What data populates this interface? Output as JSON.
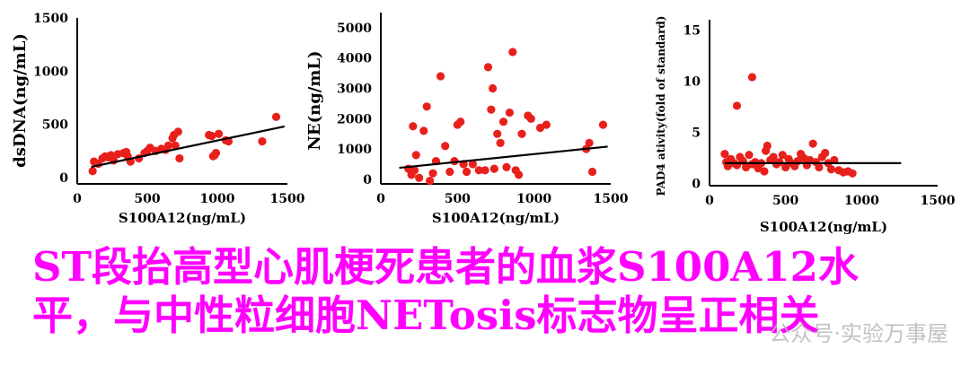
{
  "chart_data": [
    {
      "type": "scatter",
      "xlabel": "S100A12(ng/mL)",
      "ylabel": "dsDNA(ng/mL)",
      "xlim": [
        0,
        1500
      ],
      "ylim": [
        -60,
        1500
      ],
      "xticks": [
        0,
        500,
        1000,
        1500
      ],
      "yticks": [
        0,
        500,
        1000,
        1500
      ],
      "point_color": "#e8201c",
      "x": [
        110,
        120,
        150,
        180,
        200,
        220,
        240,
        260,
        290,
        330,
        350,
        360,
        380,
        440,
        480,
        500,
        520,
        560,
        600,
        630,
        650,
        680,
        690,
        700,
        720,
        730,
        940,
        960,
        970,
        980,
        990,
        1010,
        1060,
        1080,
        1320,
        1420
      ],
      "y": [
        60,
        150,
        130,
        180,
        200,
        190,
        210,
        160,
        220,
        230,
        240,
        200,
        150,
        180,
        230,
        250,
        280,
        250,
        270,
        260,
        300,
        370,
        400,
        300,
        430,
        180,
        400,
        390,
        200,
        210,
        230,
        410,
        350,
        340,
        340,
        570
      ],
      "trendline": {
        "x": [
          100,
          1480
        ],
        "y": [
          100,
          480
        ]
      }
    },
    {
      "type": "scatter",
      "xlabel": "S100A12(ng/mL)",
      "ylabel": "NE(ng/mL)",
      "xlim": [
        0,
        1500
      ],
      "ylim": [
        -150,
        5500
      ],
      "xticks": [
        0,
        500,
        1000,
        1500
      ],
      "yticks": [
        0,
        1000,
        2000,
        3000,
        4000,
        5000
      ],
      "point_color": "#e8201c",
      "x": [
        180,
        200,
        210,
        220,
        230,
        250,
        280,
        300,
        320,
        340,
        360,
        390,
        420,
        450,
        480,
        500,
        520,
        540,
        560,
        600,
        640,
        680,
        700,
        720,
        730,
        740,
        760,
        780,
        800,
        820,
        840,
        860,
        880,
        900,
        920,
        960,
        980,
        1040,
        1080,
        1340,
        1360,
        1380,
        1450
      ],
      "y": [
        350,
        150,
        1750,
        300,
        800,
        50,
        1600,
        2400,
        -50,
        200,
        600,
        3400,
        1100,
        250,
        600,
        1800,
        1900,
        500,
        250,
        500,
        300,
        300,
        3700,
        2300,
        3000,
        350,
        1500,
        1200,
        1900,
        400,
        2200,
        4200,
        300,
        150,
        1500,
        2100,
        2000,
        1700,
        1800,
        1000,
        1200,
        250,
        1800
      ],
      "trendline": {
        "x": [
          120,
          1480
        ],
        "y": [
          380,
          1080
        ]
      }
    },
    {
      "type": "scatter",
      "xlabel": "S100A12(ng/mL)",
      "ylabel": "PAD4 ativity(fold of standard)",
      "xlim": [
        0,
        1500
      ],
      "ylim": [
        -0.2,
        16
      ],
      "xticks": [
        0,
        500,
        1000,
        1500
      ],
      "yticks": [
        0,
        5,
        10,
        15
      ],
      "point_color": "#e8201c",
      "x": [
        100,
        110,
        120,
        140,
        160,
        180,
        200,
        220,
        240,
        260,
        280,
        300,
        320,
        340,
        360,
        380,
        400,
        420,
        440,
        460,
        480,
        500,
        520,
        540,
        560,
        580,
        600,
        620,
        640,
        660,
        680,
        700,
        720,
        740,
        760,
        780,
        800,
        820,
        850,
        880,
        910,
        940,
        180,
        280,
        370
      ],
      "y": [
        2.9,
        2.1,
        1.7,
        2.4,
        2.0,
        1.8,
        2.6,
        2.2,
        1.6,
        2.8,
        1.9,
        2.1,
        1.5,
        2.0,
        1.2,
        3.7,
        2.3,
        2.6,
        1.9,
        2.1,
        2.8,
        1.6,
        2.4,
        2.0,
        1.7,
        2.2,
        2.9,
        2.5,
        1.8,
        2.3,
        3.9,
        2.1,
        1.6,
        2.6,
        3.0,
        2.0,
        1.4,
        2.3,
        1.3,
        1.1,
        1.2,
        1.0,
        7.6,
        10.4,
        3.2
      ],
      "trendline": {
        "x": [
          100,
          1260
        ],
        "y": [
          2.0,
          2.0
        ]
      }
    }
  ],
  "caption": {
    "line1": "ST段抬高型心肌梗死患者的血浆S100A12水",
    "line2": "平，与中性粒细胞NETosis标志物呈正相关"
  },
  "watermark": "公众号·实验万事屋"
}
